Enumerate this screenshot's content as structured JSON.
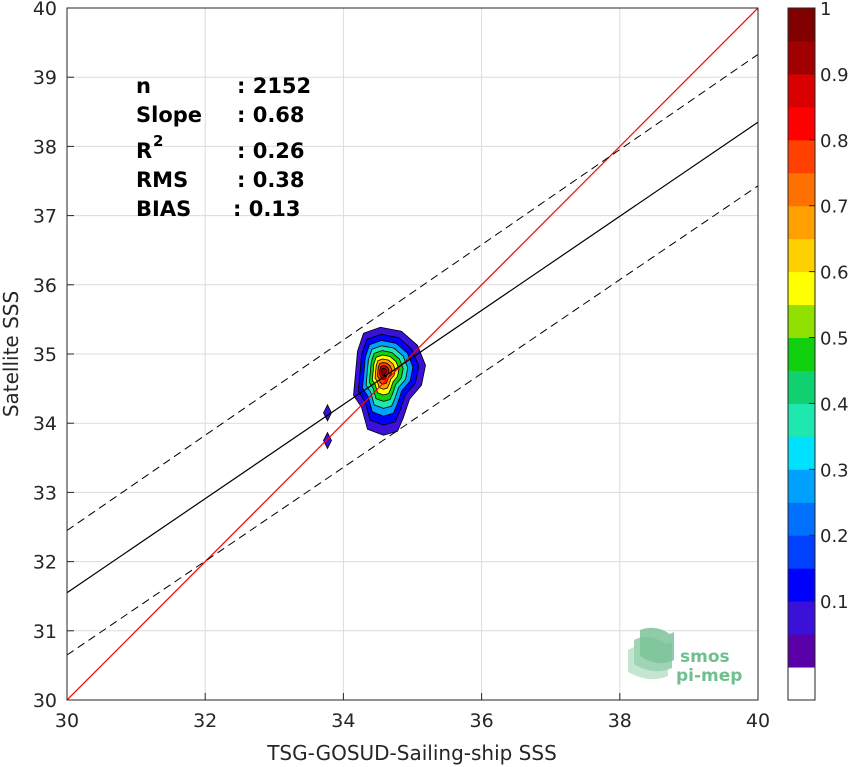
{
  "chart_data": {
    "type": "scatter",
    "xlabel": "TSG-GOSUD-Sailing-ship SSS",
    "ylabel": "Satellite SSS",
    "xlim": [
      30,
      40
    ],
    "ylim": [
      30,
      40
    ],
    "xticks": [
      30,
      32,
      34,
      36,
      38,
      40
    ],
    "yticks": [
      30,
      31,
      32,
      33,
      34,
      35,
      36,
      37,
      38,
      39,
      40
    ],
    "grid": true,
    "stats": [
      {
        "key": "n",
        "value": ": 2152"
      },
      {
        "key": "Slope",
        "value": ": 0.68"
      },
      {
        "key": "R",
        "sup": "2",
        "value": ": 0.26"
      },
      {
        "key": "RMS",
        "value": ": 0.38"
      },
      {
        "key": "BIAS",
        "value": ": 0.13"
      }
    ],
    "lines": {
      "identity": {
        "slope": 1.0,
        "intercept": 0.0,
        "color": "#ff0000"
      },
      "fit": {
        "x": [
          30,
          40
        ],
        "y": [
          31.55,
          38.35
        ],
        "color": "#000000"
      },
      "upper_bound": {
        "x": [
          30,
          40
        ],
        "y": [
          32.45,
          39.33
        ],
        "style": "dashed"
      },
      "lower_bound": {
        "x": [
          30,
          40
        ],
        "y": [
          30.65,
          37.43
        ],
        "style": "dashed"
      }
    },
    "density_peak": {
      "x": 34.58,
      "y": 34.75
    },
    "outliers": [
      {
        "x": 33.77,
        "y": 34.15
      },
      {
        "x": 33.77,
        "y": 33.75
      }
    ],
    "colorbar": {
      "ticks": [
        0.1,
        0.2,
        0.3,
        0.4,
        0.5,
        0.6,
        0.7,
        0.8,
        0.9,
        1
      ],
      "tick_labels": [
        "0.1",
        "0.2",
        "0.3",
        "0.4",
        "0.5",
        "0.6",
        "0.7",
        "0.8",
        "0.9",
        "1"
      ],
      "range": [
        0,
        1
      ],
      "colors": [
        "#ffffff",
        "#5a00a8",
        "#3b10d8",
        "#0000ff",
        "#0040ff",
        "#0070ff",
        "#00a0ff",
        "#00e0ff",
        "#1ee8b0",
        "#10d070",
        "#10d010",
        "#90e000",
        "#ffff00",
        "#ffd000",
        "#ffa000",
        "#ff7000",
        "#ff4000",
        "#ff0000",
        "#d80000",
        "#a00000",
        "#800000"
      ]
    }
  },
  "logo": {
    "line1": "smos",
    "line2": "pi-mep"
  }
}
